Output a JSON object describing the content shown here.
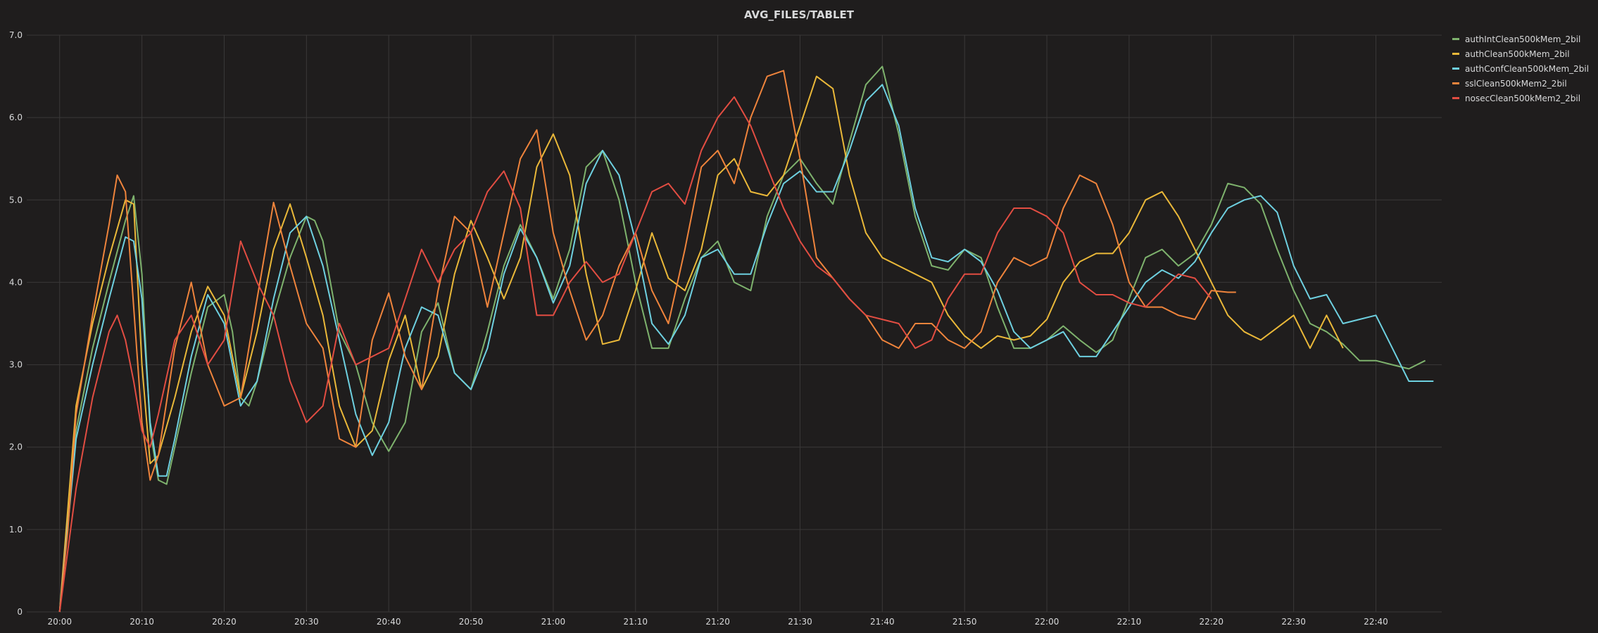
{
  "chart_data": {
    "type": "line",
    "title": "AVG_FILES/TABLET",
    "xlabel": "",
    "ylabel": "",
    "ylim": [
      0,
      7
    ],
    "y_ticks": [
      "0",
      "1.0",
      "2.0",
      "3.0",
      "4.0",
      "5.0",
      "6.0",
      "7.0"
    ],
    "x_ticks": [
      "20:00",
      "20:10",
      "20:20",
      "20:30",
      "20:40",
      "20:50",
      "21:00",
      "21:10",
      "21:20",
      "21:30",
      "21:40",
      "21:50",
      "22:00",
      "22:10",
      "22:20",
      "22:30",
      "22:40"
    ],
    "xlim_minutes": [
      -4,
      168
    ],
    "grid": true,
    "legend_position": "right",
    "series": [
      {
        "name": "authIntClean500kMem_2bil",
        "color": "#7eb26d",
        "x": [
          0,
          2,
          4,
          6,
          8,
          9,
          10,
          11,
          12,
          13,
          14,
          16,
          18,
          20,
          21,
          22,
          23,
          24,
          26,
          28,
          30,
          31,
          32,
          34,
          36,
          38,
          40,
          42,
          44,
          46,
          48,
          50,
          52,
          54,
          56,
          58,
          60,
          62,
          64,
          66,
          68,
          70,
          72,
          74,
          76,
          78,
          80,
          82,
          84,
          86,
          88,
          90,
          92,
          94,
          96,
          98,
          100,
          102,
          104,
          106,
          108,
          110,
          112,
          114,
          116,
          118,
          120,
          122,
          124,
          126,
          128,
          130,
          132,
          134,
          136,
          138,
          140,
          142,
          144,
          146,
          148,
          150,
          152,
          154,
          156,
          158,
          160,
          162,
          164,
          166
        ],
        "y": [
          0,
          2.2,
          3.2,
          4.0,
          4.75,
          5.05,
          4.1,
          2.2,
          1.6,
          1.55,
          2.0,
          2.9,
          3.7,
          3.85,
          3.4,
          2.6,
          2.5,
          2.8,
          3.6,
          4.3,
          4.8,
          4.75,
          4.5,
          3.4,
          3.0,
          2.3,
          1.95,
          2.3,
          3.4,
          3.75,
          2.9,
          2.7,
          3.4,
          4.2,
          4.7,
          4.3,
          3.8,
          4.4,
          5.4,
          5.6,
          5.0,
          4.0,
          3.2,
          3.2,
          3.8,
          4.3,
          4.5,
          4.0,
          3.9,
          4.8,
          5.3,
          5.5,
          5.2,
          4.95,
          5.7,
          6.4,
          6.62,
          5.8,
          4.8,
          4.2,
          4.15,
          4.4,
          4.3,
          3.7,
          3.2,
          3.2,
          3.3,
          3.47,
          3.3,
          3.15,
          3.3,
          3.8,
          4.3,
          4.4,
          4.2,
          4.35,
          4.7,
          5.2,
          5.15,
          4.95,
          4.4,
          3.9,
          3.5,
          3.4,
          3.25,
          3.05,
          3.05,
          3.0,
          2.95,
          3.05
        ]
      },
      {
        "name": "authClean500kMem_2bil",
        "color": "#eab839",
        "x": [
          0,
          2,
          4,
          6,
          8,
          9,
          10,
          11,
          12,
          14,
          16,
          18,
          20,
          22,
          24,
          26,
          28,
          30,
          32,
          34,
          36,
          38,
          40,
          42,
          44,
          46,
          48,
          50,
          52,
          54,
          56,
          58,
          60,
          62,
          64,
          66,
          68,
          70,
          72,
          74,
          76,
          78,
          80,
          82,
          84,
          86,
          88,
          90,
          92,
          94,
          96,
          98,
          100,
          102,
          104,
          106,
          108,
          110,
          112,
          114,
          116,
          118,
          120,
          122,
          124,
          126,
          128,
          130,
          132,
          134,
          136,
          138,
          140,
          142,
          144,
          146,
          148,
          150,
          152,
          154,
          155,
          156,
          157,
          158
        ],
        "y": [
          0,
          2.5,
          3.5,
          4.3,
          5.0,
          4.95,
          3.0,
          1.8,
          1.9,
          2.6,
          3.4,
          3.95,
          3.6,
          2.6,
          3.4,
          4.4,
          4.95,
          4.3,
          3.6,
          2.5,
          2.0,
          2.2,
          3.05,
          3.6,
          2.7,
          3.1,
          4.1,
          4.75,
          4.3,
          3.8,
          4.3,
          5.4,
          5.8,
          5.3,
          4.1,
          3.25,
          3.3,
          3.9,
          4.6,
          4.05,
          3.9,
          4.4,
          5.3,
          5.5,
          5.1,
          5.05,
          5.3,
          5.9,
          6.5,
          6.35,
          5.3,
          4.6,
          4.3,
          4.2,
          4.1,
          4.0,
          3.6,
          3.35,
          3.2,
          3.35,
          3.3,
          3.35,
          3.55,
          4.0,
          4.25,
          4.35,
          4.35,
          4.6,
          5.0,
          5.1,
          4.8,
          4.4,
          4.0,
          3.6,
          3.4,
          3.3,
          3.45,
          3.6,
          3.2,
          3.6,
          3.4,
          3.2,
          null,
          null
        ]
      },
      {
        "name": "authConfClean500kMem_2bil",
        "color": "#6ed0e0",
        "x": [
          0,
          2,
          4,
          6,
          8,
          9,
          10,
          11,
          12,
          13,
          14,
          16,
          18,
          20,
          22,
          24,
          26,
          28,
          30,
          32,
          34,
          36,
          38,
          40,
          42,
          44,
          46,
          48,
          50,
          52,
          54,
          56,
          58,
          60,
          62,
          64,
          66,
          68,
          70,
          72,
          74,
          76,
          78,
          80,
          82,
          84,
          86,
          88,
          90,
          92,
          94,
          96,
          98,
          100,
          102,
          104,
          106,
          108,
          110,
          112,
          114,
          116,
          118,
          120,
          122,
          124,
          126,
          128,
          130,
          132,
          134,
          136,
          138,
          140,
          142,
          144,
          146,
          148,
          150,
          152,
          154,
          156,
          158,
          160,
          162,
          164,
          166,
          167
        ],
        "y": [
          0,
          2.1,
          3.0,
          3.8,
          4.55,
          4.5,
          3.8,
          2.3,
          1.65,
          1.65,
          2.1,
          3.1,
          3.85,
          3.5,
          2.5,
          2.8,
          3.8,
          4.6,
          4.8,
          4.2,
          3.3,
          2.4,
          1.9,
          2.3,
          3.2,
          3.7,
          3.6,
          2.9,
          2.7,
          3.2,
          4.1,
          4.65,
          4.3,
          3.75,
          4.2,
          5.2,
          5.6,
          5.3,
          4.5,
          3.5,
          3.25,
          3.6,
          4.3,
          4.4,
          4.1,
          4.1,
          4.7,
          5.2,
          5.35,
          5.1,
          5.1,
          5.6,
          6.2,
          6.4,
          5.9,
          4.9,
          4.3,
          4.25,
          4.4,
          4.25,
          3.9,
          3.4,
          3.2,
          3.3,
          3.4,
          3.1,
          3.1,
          3.4,
          3.7,
          4.0,
          4.15,
          4.05,
          4.25,
          4.6,
          4.9,
          5.0,
          5.05,
          4.85,
          4.2,
          3.8,
          3.85,
          3.5,
          3.55,
          3.6,
          3.2,
          2.8,
          2.8,
          2.8
        ]
      },
      {
        "name": "sslClean500kMem2_2bil",
        "color": "#ef843c",
        "x": [
          0,
          1,
          2,
          4,
          6,
          7,
          8,
          9,
          10,
          11,
          12,
          14,
          16,
          18,
          20,
          22,
          24,
          26,
          28,
          30,
          32,
          34,
          36,
          38,
          40,
          42,
          44,
          46,
          48,
          50,
          52,
          54,
          56,
          58,
          60,
          62,
          64,
          66,
          68,
          70,
          72,
          74,
          76,
          78,
          80,
          82,
          84,
          86,
          88,
          90,
          92,
          94,
          96,
          98,
          100,
          102,
          104,
          106,
          108,
          110,
          112,
          114,
          116,
          118,
          120,
          122,
          124,
          126,
          128,
          130,
          132,
          134,
          136,
          138,
          140,
          142,
          143
        ],
        "y": [
          0,
          1.0,
          2.4,
          3.6,
          4.7,
          5.3,
          5.1,
          3.7,
          2.3,
          1.6,
          1.9,
          3.2,
          4.0,
          3.0,
          2.5,
          2.6,
          3.8,
          4.97,
          4.2,
          3.5,
          3.2,
          2.1,
          2.0,
          3.3,
          3.87,
          3.1,
          2.7,
          3.9,
          4.8,
          4.6,
          3.7,
          4.6,
          5.5,
          5.85,
          4.6,
          3.9,
          3.3,
          3.6,
          4.2,
          4.6,
          3.9,
          3.5,
          4.4,
          5.4,
          5.6,
          5.2,
          6.0,
          6.5,
          6.57,
          5.5,
          4.3,
          4.05,
          3.8,
          3.6,
          3.3,
          3.2,
          3.5,
          3.5,
          3.3,
          3.2,
          3.4,
          4.0,
          4.3,
          4.2,
          4.3,
          4.9,
          5.3,
          5.2,
          4.7,
          4.0,
          3.7,
          3.7,
          3.6,
          3.55,
          3.9,
          3.88,
          3.88
        ]
      },
      {
        "name": "nosecClean500kMem2_2bil",
        "color": "#e24d42",
        "x": [
          0,
          2,
          4,
          6,
          7,
          8,
          9,
          10,
          11,
          12,
          14,
          16,
          18,
          20,
          22,
          24,
          26,
          28,
          30,
          32,
          34,
          36,
          38,
          40,
          42,
          44,
          46,
          48,
          50,
          52,
          54,
          56,
          58,
          60,
          62,
          64,
          66,
          68,
          70,
          72,
          74,
          76,
          78,
          80,
          82,
          84,
          86,
          88,
          90,
          92,
          94,
          96,
          98,
          100,
          102,
          104,
          106,
          108,
          110,
          112,
          114,
          116,
          118,
          120,
          122,
          124,
          126,
          128,
          130,
          132,
          134,
          136,
          138,
          140
        ],
        "y": [
          0,
          1.5,
          2.6,
          3.4,
          3.6,
          3.3,
          2.8,
          2.2,
          2.0,
          2.4,
          3.3,
          3.6,
          3.0,
          3.3,
          4.5,
          4.0,
          3.6,
          2.8,
          2.3,
          2.5,
          3.5,
          3.0,
          3.1,
          3.2,
          3.8,
          4.4,
          4.0,
          4.4,
          4.6,
          5.1,
          5.35,
          4.9,
          3.6,
          3.6,
          4.0,
          4.25,
          4.0,
          4.1,
          4.6,
          5.1,
          5.2,
          4.95,
          5.6,
          6.0,
          6.25,
          5.9,
          5.4,
          4.9,
          4.5,
          4.2,
          4.05,
          3.8,
          3.6,
          3.55,
          3.5,
          3.2,
          3.3,
          3.8,
          4.1,
          4.1,
          4.6,
          4.9,
          4.9,
          4.8,
          4.6,
          4.0,
          3.85,
          3.85,
          3.75,
          3.7,
          3.9,
          4.1,
          4.05,
          3.8
        ]
      }
    ]
  }
}
